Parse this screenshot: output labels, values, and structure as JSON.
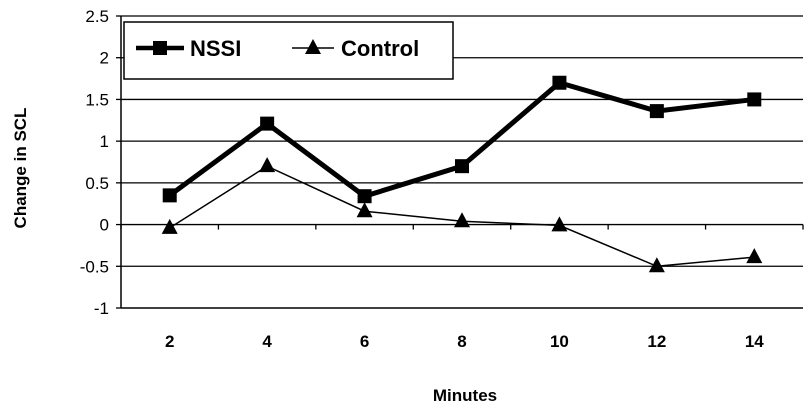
{
  "chart_data": {
    "type": "line",
    "title": "",
    "xlabel": "Minutes",
    "ylabel": "Change in SCL",
    "categories": [
      "2",
      "4",
      "6",
      "8",
      "10",
      "12",
      "14"
    ],
    "ylim": [
      -1,
      2.5
    ],
    "yticks": [
      "-1",
      "-0.5",
      "0",
      "0.5",
      "1",
      "1.5",
      "2",
      "2.5"
    ],
    "grid": "horizontal",
    "legend_position": "top-left",
    "series": [
      {
        "name": "NSSI",
        "marker": "square",
        "line": "thick",
        "color": "#000000",
        "values": [
          0.35,
          1.21,
          0.34,
          0.7,
          1.7,
          1.36,
          1.5
        ]
      },
      {
        "name": "Control",
        "marker": "triangle",
        "line": "thin",
        "color": "#000000",
        "values": [
          -0.04,
          0.7,
          0.16,
          0.04,
          -0.01,
          -0.5,
          -0.39
        ]
      }
    ]
  }
}
